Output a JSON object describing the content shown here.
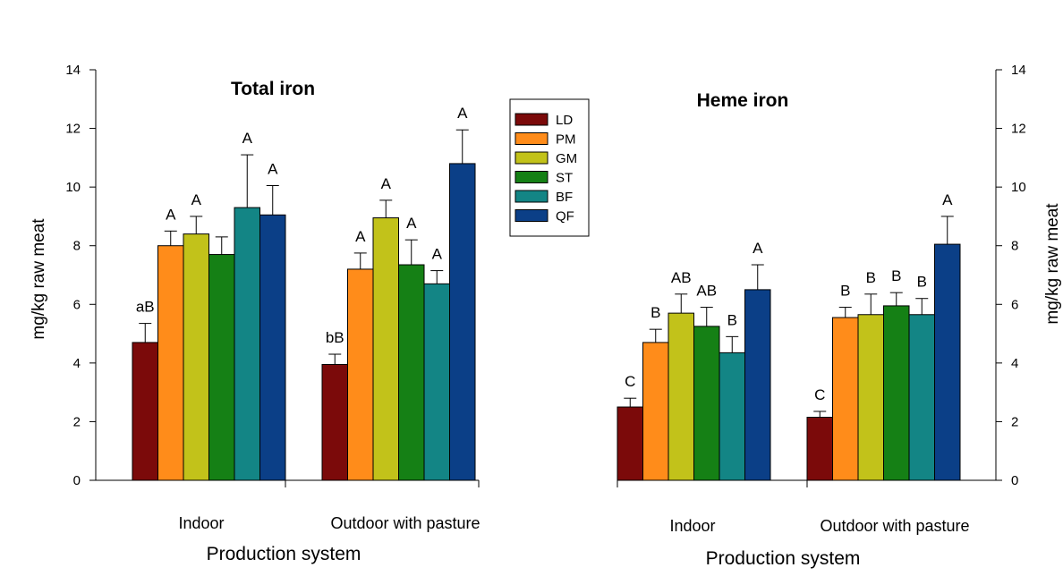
{
  "chart_data": {
    "type": "bar",
    "ylabel": "mg/kg raw meat",
    "ylim": [
      0,
      14
    ],
    "yticks": [
      0,
      2,
      4,
      6,
      8,
      10,
      12,
      14
    ],
    "legend": {
      "position": "top-center",
      "entries": [
        {
          "name": "LD",
          "color": "#7B0A0A"
        },
        {
          "name": "PM",
          "color": "#FF8C1A"
        },
        {
          "name": "GM",
          "color": "#C2C21A"
        },
        {
          "name": "ST",
          "color": "#158015"
        },
        {
          "name": "BF",
          "color": "#138585"
        },
        {
          "name": "QF",
          "color": "#0B3F87"
        }
      ]
    },
    "panels": [
      {
        "title": "Total iron",
        "xlabel": "Production system",
        "groups": [
          {
            "category": "Indoor",
            "values": [
              4.7,
              8.0,
              8.4,
              7.7,
              9.3,
              9.05
            ],
            "errors": [
              0.65,
              0.5,
              0.6,
              0.6,
              1.8,
              1.0
            ],
            "labels": [
              "aB",
              "A",
              "A",
              "",
              "A",
              "A"
            ]
          },
          {
            "category": "Outdoor with pasture",
            "values": [
              3.95,
              7.2,
              8.95,
              7.35,
              6.7,
              10.8
            ],
            "errors": [
              0.35,
              0.55,
              0.6,
              0.85,
              0.45,
              1.15
            ],
            "labels": [
              "bB",
              "A",
              "A",
              "A",
              "A",
              "A"
            ]
          }
        ]
      },
      {
        "title": "Heme iron",
        "xlabel": "Production system",
        "groups": [
          {
            "category": "Indoor",
            "values": [
              2.5,
              4.7,
              5.7,
              5.25,
              4.35,
              6.5
            ],
            "errors": [
              0.3,
              0.45,
              0.65,
              0.65,
              0.55,
              0.85
            ],
            "labels": [
              "C",
              "B",
              "AB",
              "AB",
              "B",
              "A"
            ]
          },
          {
            "category": "Outdoor with pasture",
            "values": [
              2.15,
              5.55,
              5.65,
              5.95,
              5.65,
              8.05
            ],
            "errors": [
              0.2,
              0.35,
              0.7,
              0.45,
              0.55,
              0.95
            ],
            "labels": [
              "C",
              "B",
              "B",
              "B",
              "B",
              "A"
            ]
          }
        ]
      }
    ]
  }
}
